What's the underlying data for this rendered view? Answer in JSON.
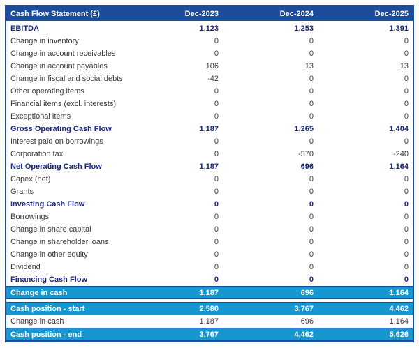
{
  "colors": {
    "header_bg": "#1e4c9c",
    "border": "#1e4c9c",
    "bold_row_text": "#19277f",
    "normal_row_text": "#3a3a3a",
    "highlight_row_bg": "#1697cf",
    "highlight_row_text": "#ffffff"
  },
  "table": {
    "title": "Cash Flow Statement (£)",
    "columns": [
      "Dec-2023",
      "Dec-2024",
      "Dec-2025"
    ],
    "rows": [
      {
        "label": "EBITDA",
        "values": [
          "1,123",
          "1,253",
          "1,391"
        ],
        "style": "bold"
      },
      {
        "label": "Change in inventory",
        "values": [
          "0",
          "0",
          "0"
        ],
        "style": "normal"
      },
      {
        "label": "Change in account receivables",
        "values": [
          "0",
          "0",
          "0"
        ],
        "style": "normal"
      },
      {
        "label": "Change in account payables",
        "values": [
          "106",
          "13",
          "13"
        ],
        "style": "normal"
      },
      {
        "label": "Change in fiscal and social debts",
        "values": [
          "-42",
          "0",
          "0"
        ],
        "style": "normal"
      },
      {
        "label": "Other operating items",
        "values": [
          "0",
          "0",
          "0"
        ],
        "style": "normal"
      },
      {
        "label": "Financial items (excl. interests)",
        "values": [
          "0",
          "0",
          "0"
        ],
        "style": "normal"
      },
      {
        "label": "Exceptional items",
        "values": [
          "0",
          "0",
          "0"
        ],
        "style": "normal"
      },
      {
        "label": "Gross Operating Cash Flow",
        "values": [
          "1,187",
          "1,265",
          "1,404"
        ],
        "style": "bold"
      },
      {
        "label": "Interest paid on borrowings",
        "values": [
          "0",
          "0",
          "0"
        ],
        "style": "normal"
      },
      {
        "label": "Corporation tax",
        "values": [
          "0",
          "-570",
          "-240"
        ],
        "style": "normal"
      },
      {
        "label": "Net Operating Cash Flow",
        "values": [
          "1,187",
          "696",
          "1,164"
        ],
        "style": "bold"
      },
      {
        "label": "Capex (net)",
        "values": [
          "0",
          "0",
          "0"
        ],
        "style": "normal"
      },
      {
        "label": "Grants",
        "values": [
          "0",
          "0",
          "0"
        ],
        "style": "normal"
      },
      {
        "label": "Investing Cash Flow",
        "values": [
          "0",
          "0",
          "0"
        ],
        "style": "bold"
      },
      {
        "label": "Borrowings",
        "values": [
          "0",
          "0",
          "0"
        ],
        "style": "normal"
      },
      {
        "label": "Change in share capital",
        "values": [
          "0",
          "0",
          "0"
        ],
        "style": "normal"
      },
      {
        "label": "Change in shareholder loans",
        "values": [
          "0",
          "0",
          "0"
        ],
        "style": "normal"
      },
      {
        "label": "Change in other equity",
        "values": [
          "0",
          "0",
          "0"
        ],
        "style": "normal"
      },
      {
        "label": "Dividend",
        "values": [
          "0",
          "0",
          "0"
        ],
        "style": "normal"
      },
      {
        "label": "Financing Cash Flow",
        "values": [
          "0",
          "0",
          "0"
        ],
        "style": "bold"
      },
      {
        "label": "Change in cash",
        "values": [
          "1,187",
          "696",
          "1,164"
        ],
        "style": "highlight"
      }
    ],
    "summary_rows": [
      {
        "label": "Cash position - start",
        "values": [
          "2,580",
          "3,767",
          "4,462"
        ],
        "style": "highlight"
      },
      {
        "label": "Change in cash",
        "values": [
          "1,187",
          "696",
          "1,164"
        ],
        "style": "normal"
      },
      {
        "label": "Cash position - end",
        "values": [
          "3,767",
          "4,462",
          "5,626"
        ],
        "style": "highlight"
      }
    ]
  },
  "chart_data": {
    "type": "table",
    "title": "Cash Flow Statement (£)",
    "columns": [
      "Cash Flow Statement (£)",
      "Dec-2023",
      "Dec-2024",
      "Dec-2025"
    ],
    "rows": [
      [
        "EBITDA",
        1123,
        1253,
        1391
      ],
      [
        "Change in inventory",
        0,
        0,
        0
      ],
      [
        "Change in account receivables",
        0,
        0,
        0
      ],
      [
        "Change in account payables",
        106,
        13,
        13
      ],
      [
        "Change in fiscal and social debts",
        -42,
        0,
        0
      ],
      [
        "Other operating items",
        0,
        0,
        0
      ],
      [
        "Financial items (excl. interests)",
        0,
        0,
        0
      ],
      [
        "Exceptional items",
        0,
        0,
        0
      ],
      [
        "Gross Operating Cash Flow",
        1187,
        1265,
        1404
      ],
      [
        "Interest paid on borrowings",
        0,
        0,
        0
      ],
      [
        "Corporation tax",
        0,
        -570,
        -240
      ],
      [
        "Net Operating Cash Flow",
        1187,
        696,
        1164
      ],
      [
        "Capex (net)",
        0,
        0,
        0
      ],
      [
        "Grants",
        0,
        0,
        0
      ],
      [
        "Investing Cash Flow",
        0,
        0,
        0
      ],
      [
        "Borrowings",
        0,
        0,
        0
      ],
      [
        "Change in share capital",
        0,
        0,
        0
      ],
      [
        "Change in shareholder loans",
        0,
        0,
        0
      ],
      [
        "Change in other equity",
        0,
        0,
        0
      ],
      [
        "Dividend",
        0,
        0,
        0
      ],
      [
        "Financing Cash Flow",
        0,
        0,
        0
      ],
      [
        "Change in cash",
        1187,
        696,
        1164
      ],
      [
        "Cash position - start",
        2580,
        3767,
        4462
      ],
      [
        "Change in cash",
        1187,
        696,
        1164
      ],
      [
        "Cash position - end",
        3767,
        4462,
        5626
      ]
    ]
  }
}
